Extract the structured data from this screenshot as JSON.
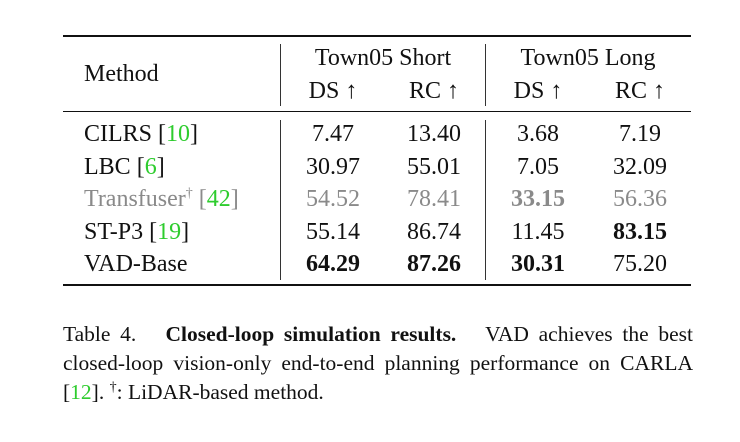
{
  "table": {
    "header": {
      "method": "Method",
      "groups": [
        "Town05 Short",
        "Town05 Long"
      ],
      "metrics": [
        "DS ↑",
        "RC ↑",
        "DS ↑",
        "RC ↑"
      ]
    },
    "rows": [
      {
        "method": "CILRS",
        "ref": "10",
        "dagger": "",
        "values": [
          "7.47",
          "13.40",
          "3.68",
          "7.19"
        ],
        "bold": [
          false,
          false,
          false,
          false
        ],
        "gray": false
      },
      {
        "method": "LBC",
        "ref": "6",
        "dagger": "",
        "values": [
          "30.97",
          "55.01",
          "7.05",
          "32.09"
        ],
        "bold": [
          false,
          false,
          false,
          false
        ],
        "gray": false
      },
      {
        "method": "Transfuser",
        "ref": "42",
        "dagger": "†",
        "values": [
          "54.52",
          "78.41",
          "33.15",
          "56.36"
        ],
        "bold": [
          false,
          false,
          true,
          false
        ],
        "gray": true
      },
      {
        "method": "ST-P3",
        "ref": "19",
        "dagger": "",
        "values": [
          "55.14",
          "86.74",
          "11.45",
          "83.15"
        ],
        "bold": [
          false,
          false,
          false,
          true
        ],
        "gray": false
      },
      {
        "method": "VAD-Base",
        "ref": "",
        "dagger": "",
        "values": [
          "64.29",
          "87.26",
          "30.31",
          "75.20"
        ],
        "bold": [
          true,
          true,
          true,
          false
        ],
        "gray": false
      }
    ]
  },
  "caption": {
    "label": "Table 4.",
    "title": "Closed-loop simulation results.",
    "text1": "VAD achieves the best closed-loop vision-only end-to-end planning performance on CARLA [",
    "ref": "12",
    "text2": "]. ",
    "dagger": "†",
    "text3": ": LiDAR-based method."
  },
  "colors": {
    "citation": "#2ecc2e",
    "lidar_row": "#8a8a8a"
  }
}
